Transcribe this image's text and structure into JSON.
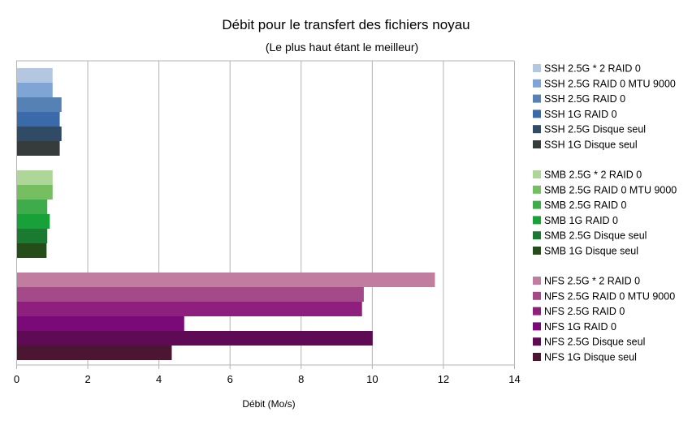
{
  "chart_data": {
    "type": "bar",
    "orientation": "horizontal",
    "title": "Débit pour le transfert des fichiers noyau",
    "subtitle": "(Le plus haut étant le meilleur)",
    "xlabel": "Débit (Mo/s)",
    "ylabel": "",
    "xlim": [
      0,
      14
    ],
    "xticks": [
      0,
      2,
      4,
      6,
      8,
      10,
      12,
      14
    ],
    "grid": "vertical",
    "legend_position": "right",
    "groups": [
      {
        "series": [
          {
            "name": "SSH 2.5G * 2 RAID 0",
            "value": 1.0,
            "color": "#b4c7e1"
          },
          {
            "name": "SSH 2.5G RAID 0 MTU 9000",
            "value": 1.0,
            "color": "#7ea5d6"
          },
          {
            "name": "SSH 2.5G RAID 0",
            "value": 1.25,
            "color": "#5581b4"
          },
          {
            "name": "SSH 1G RAID 0",
            "value": 1.2,
            "color": "#3b6aa8"
          },
          {
            "name": "SSH 2.5G Disque seul",
            "value": 1.25,
            "color": "#2f4b66"
          },
          {
            "name": "SSH 1G Disque seul",
            "value": 1.2,
            "color": "#363b3b"
          }
        ]
      },
      {
        "series": [
          {
            "name": "SMB 2.5G * 2 RAID 0",
            "value": 1.0,
            "color": "#aed698"
          },
          {
            "name": "SMB 2.5G RAID 0 MTU 9000",
            "value": 1.0,
            "color": "#75bf60"
          },
          {
            "name": "SMB 2.5G RAID 0",
            "value": 0.85,
            "color": "#3fac4b"
          },
          {
            "name": "SMB 1G RAID 0",
            "value": 0.92,
            "color": "#17a138"
          },
          {
            "name": "SMB 2.5G Disque seul",
            "value": 0.85,
            "color": "#1a7a30"
          },
          {
            "name": "SMB 1G Disque seul",
            "value": 0.83,
            "color": "#254d1a"
          }
        ]
      },
      {
        "series": [
          {
            "name": "NFS 2.5G * 2 RAID 0",
            "value": 11.75,
            "color": "#c07d9f"
          },
          {
            "name": "NFS 2.5G RAID 0 MTU 9000",
            "value": 9.75,
            "color": "#a44a89"
          },
          {
            "name": "NFS 2.5G RAID 0",
            "value": 9.7,
            "color": "#8f1f7c"
          },
          {
            "name": "NFS 1G RAID 0",
            "value": 4.7,
            "color": "#7a0a78"
          },
          {
            "name": "NFS 2.5G Disque seul",
            "value": 10.0,
            "color": "#5f0a55"
          },
          {
            "name": "NFS 1G Disque seul",
            "value": 4.35,
            "color": "#4c1632"
          }
        ]
      }
    ]
  }
}
